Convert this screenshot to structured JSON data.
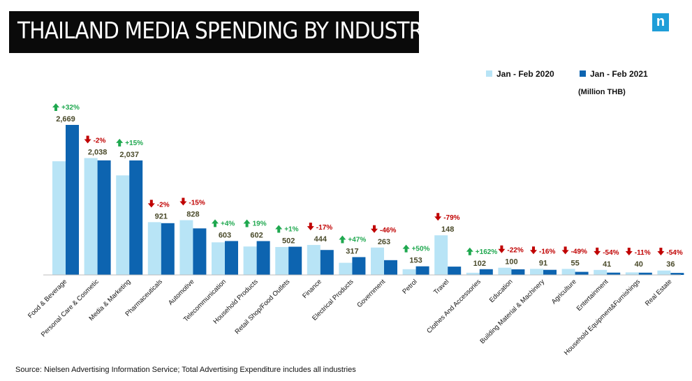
{
  "title": "THAILAND  MEDIA SPENDING BY INDUSTRY",
  "logo_letter": "n",
  "unit": "(Million THB)",
  "source": "Source: Nielsen  Advertising Information Service; Total Advertising Expenditure includes all industries",
  "colors": {
    "series_2020": "#b8e4f6",
    "series_2021": "#0d64b0",
    "up": "#1fa84f",
    "down": "#c00000"
  },
  "chart_data": {
    "type": "bar",
    "categories": [
      "Food & Beverage",
      "Personal Care & Cosmetic",
      "Media & Marketing",
      "Pharmaceuticals",
      "Automotive",
      "Telecommunication",
      "Household Products",
      "Retail Shop/Food Outlets",
      "Finance",
      "Electrical Products",
      "Government",
      "Petrol",
      "Travel",
      "Clothes And Accessories",
      "Education",
      "Building Material & Machinery",
      "Agriculture",
      "Entertainment",
      "Household Equipment&Furnishings",
      "Real Estate"
    ],
    "series": [
      {
        "name": "Jan - Feb 2020",
        "values": [
          2022,
          2079,
          1771,
          939,
          974,
          580,
          506,
          497,
          533,
          216,
          487,
          102,
          705,
          39,
          128,
          108,
          107,
          89,
          45,
          78
        ]
      },
      {
        "name": "Jan - Feb 2021",
        "values": [
          2669,
          2038,
          2037,
          921,
          828,
          603,
          602,
          502,
          444,
          317,
          263,
          153,
          148,
          102,
          100,
          91,
          55,
          41,
          40,
          36
        ]
      }
    ],
    "value_labels": [
      "2,669",
      "2,038",
      "2,037",
      "921",
      "828",
      "603",
      "602",
      "502",
      "444",
      "317",
      "263",
      "153",
      "148",
      "102",
      "100",
      "91",
      "55",
      "41",
      "40",
      "36"
    ],
    "changes": [
      "+32%",
      "-2%",
      "+15%",
      "-2%",
      "-15%",
      "+4%",
      "19%",
      "+1%",
      "-17%",
      "+47%",
      "-46%",
      "+50%",
      "-79%",
      "+162%",
      "-22%",
      "-16%",
      "-49%",
      "-54%",
      "-11%",
      "-54%"
    ],
    "directions": [
      "up",
      "down",
      "up",
      "down",
      "down",
      "up",
      "up",
      "up",
      "down",
      "up",
      "down",
      "up",
      "down",
      "up",
      "down",
      "down",
      "down",
      "down",
      "down",
      "down"
    ],
    "ylim": [
      0,
      2669
    ],
    "legend_position": "top-right",
    "grid": false
  }
}
